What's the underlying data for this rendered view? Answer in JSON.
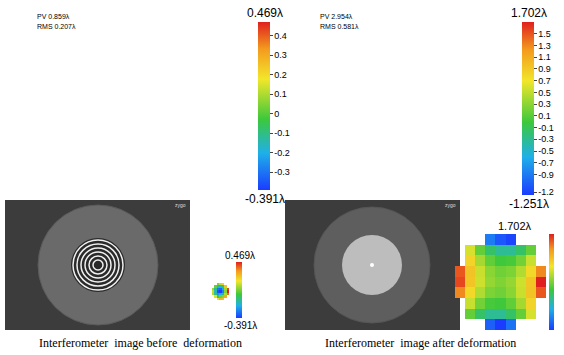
{
  "chart_data": [
    {
      "type": "surface",
      "caption": "Interferometer  image before  deformation",
      "annotations": [
        "PV 0.859λ",
        "RMS 0.207λ"
      ],
      "image_label": "zygo",
      "tick_labels": false,
      "x": [
        0.42,
        0.447,
        0.473,
        0.5,
        0.527,
        0.553,
        0.58
      ],
      "y": [
        0.42,
        0.447,
        0.473,
        0.5,
        0.527,
        0.553,
        0.58
      ],
      "z": [
        [
          null,
          null,
          0.2,
          0.28,
          0.25,
          null,
          null
        ],
        [
          null,
          0.15,
          -0.05,
          0.02,
          0.05,
          0.3,
          null
        ],
        [
          0.1,
          -0.1,
          -0.25,
          -0.2,
          -0.12,
          0.1,
          0.38
        ],
        [
          0.12,
          -0.15,
          -0.35,
          -0.391,
          -0.28,
          0.05,
          0.469
        ],
        [
          0.08,
          -0.12,
          -0.3,
          -0.33,
          -0.22,
          0.08,
          0.42
        ],
        [
          null,
          0.02,
          -0.15,
          -0.18,
          -0.08,
          0.25,
          null
        ],
        [
          null,
          null,
          0.05,
          0.12,
          0.22,
          null,
          null
        ]
      ],
      "xlim": [
        0,
        1
      ],
      "ylim": [
        0,
        1
      ],
      "zlim": [
        -0.391,
        0.469
      ],
      "colorbar": {
        "range": [
          -0.391,
          0.469
        ],
        "ticks": [
          0.4,
          0.3,
          0.2,
          0.1,
          0,
          -0.1,
          -0.2,
          -0.3
        ],
        "top_label": "0.469λ",
        "bottom_label": "-0.391λ"
      },
      "map_colorbar": {
        "top_label": "0.469λ",
        "bottom_label": "-0.391λ"
      }
    },
    {
      "type": "surface",
      "caption": "Interferometer  image after deformation",
      "annotations": [
        "PV 2.954λ",
        "RMS 0.581λ"
      ],
      "image_label": "zygo",
      "tick_labels": false,
      "x": [
        0.38,
        0.41,
        0.44,
        0.47,
        0.5,
        0.53,
        0.56,
        0.59,
        0.62
      ],
      "y": [
        0.38,
        0.41,
        0.44,
        0.47,
        0.5,
        0.53,
        0.56,
        0.59,
        0.62
      ],
      "z": [
        [
          null,
          null,
          null,
          -1.05,
          -1.251,
          -0.95,
          null,
          null,
          null
        ],
        [
          null,
          0.14,
          -0.16,
          -0.31,
          -0.31,
          -0.16,
          0.14,
          0.59,
          null
        ],
        [
          null,
          0.53,
          0.2,
          0.03,
          0.0,
          0.13,
          0.4,
          0.83,
          null
        ],
        [
          1.29,
          0.79,
          0.44,
          0.24,
          0.19,
          0.29,
          0.54,
          0.94,
          1.49
        ],
        [
          1.55,
          0.93,
          0.55,
          0.33,
          0.25,
          0.33,
          0.55,
          0.93,
          1.702
        ],
        [
          1.49,
          0.94,
          0.54,
          0.29,
          0.19,
          0.24,
          0.44,
          0.79,
          1.29
        ],
        [
          null,
          0.83,
          0.4,
          0.13,
          0.0,
          0.03,
          0.2,
          0.53,
          null
        ],
        [
          null,
          0.59,
          0.14,
          -0.16,
          -0.31,
          -0.31,
          -0.16,
          0.14,
          null
        ],
        [
          null,
          null,
          null,
          -0.9,
          -1.1,
          -1.2,
          null,
          null,
          null
        ]
      ],
      "xlim": [
        0,
        1
      ],
      "ylim": [
        0,
        1
      ],
      "zlim": [
        -1.251,
        1.702
      ],
      "colorbar": {
        "range": [
          -1.251,
          1.702
        ],
        "ticks": [
          1.5,
          1.3,
          1.1,
          0.9,
          0.7,
          0.5,
          0.3,
          0.1,
          -0.1,
          -0.3,
          -0.5,
          -0.7,
          -0.9,
          -1.2
        ],
        "top_label": "1.702λ",
        "bottom_label": "-1.251λ"
      },
      "map_colorbar": {
        "top_label": "1.702λ"
      }
    }
  ]
}
